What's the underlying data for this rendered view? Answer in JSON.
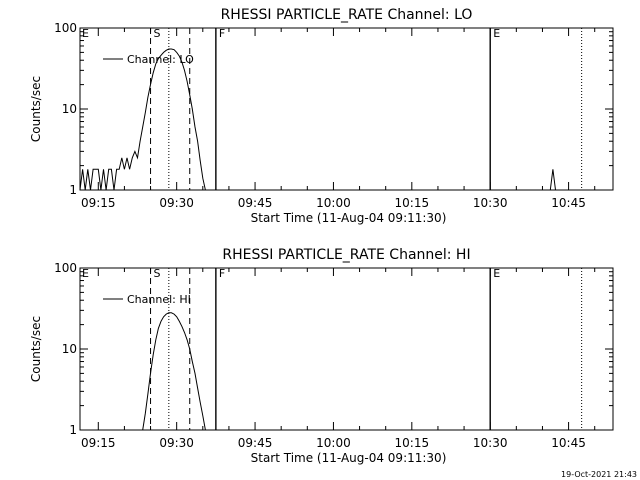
{
  "chart_data": [
    {
      "type": "line",
      "title": "RHESSI PARTICLE_RATE Channel: LO",
      "xlabel": "Start Time (11-Aug-04 09:11:30)",
      "ylabel": "Counts/sec",
      "yscale": "log",
      "xlim": [
        "09:11:30",
        "10:53:30"
      ],
      "ylim": [
        1,
        100
      ],
      "x_ticks": [
        "09:15",
        "09:30",
        "09:45",
        "10:00",
        "10:15",
        "10:30",
        "10:45"
      ],
      "y_ticks": [
        "1",
        "10",
        "100"
      ],
      "legend": {
        "placement": "top-left",
        "label": "Channel: LO"
      },
      "markers": [
        {
          "label": "E",
          "time": "09:11:30",
          "style": "solid"
        },
        {
          "label": "S",
          "time": "09:25:00",
          "style": "dashed"
        },
        {
          "label": "",
          "time": "09:28:30",
          "style": "dotted"
        },
        {
          "label": "",
          "time": "09:32:30",
          "style": "dashed"
        },
        {
          "label": "F",
          "time": "09:37:30",
          "style": "solid"
        },
        {
          "label": "E",
          "time": "10:30:00",
          "style": "solid"
        },
        {
          "label": "",
          "time": "10:47:30",
          "style": "dotted"
        }
      ],
      "series": [
        {
          "name": "Channel: LO",
          "x": [
            "09:11:30",
            "09:12:00",
            "09:12:30",
            "09:13:00",
            "09:13:30",
            "09:14:00",
            "09:14:30",
            "09:15:00",
            "09:15:30",
            "09:16:00",
            "09:16:30",
            "09:17:00",
            "09:17:30",
            "09:18:00",
            "09:18:30",
            "09:19:00",
            "09:19:30",
            "09:20:00",
            "09:20:30",
            "09:21:00",
            "09:21:30",
            "09:22:00",
            "09:22:30",
            "09:23:00",
            "09:23:30",
            "09:24:00",
            "09:24:30",
            "09:25:00",
            "09:25:30",
            "09:26:00",
            "09:26:30",
            "09:27:00",
            "09:27:30",
            "09:28:00",
            "09:28:30",
            "09:29:00",
            "09:29:30",
            "09:30:00",
            "09:30:30",
            "09:31:00",
            "09:31:30",
            "09:32:00",
            "09:32:30",
            "09:33:00",
            "09:33:30",
            "09:34:00",
            "09:34:30",
            "09:35:00",
            "09:35:30",
            "10:41:30",
            "10:42:00",
            "10:42:30"
          ],
          "y": [
            1,
            1.8,
            1,
            1.8,
            1,
            1.8,
            1.8,
            1.8,
            1,
            1.8,
            1,
            1.8,
            1.8,
            1,
            1.8,
            1.8,
            2.5,
            1.8,
            2.5,
            1.8,
            2.5,
            3,
            2.5,
            4,
            6,
            9,
            14,
            20,
            28,
            36,
            42,
            46,
            50,
            53,
            55,
            55,
            54,
            50,
            45,
            38,
            30,
            22,
            15,
            10,
            6,
            4,
            2.3,
            1.4,
            1,
            1,
            1.8,
            1
          ]
        }
      ]
    },
    {
      "type": "line",
      "title": "RHESSI PARTICLE_RATE Channel: HI",
      "xlabel": "Start Time (11-Aug-04 09:11:30)",
      "ylabel": "Counts/sec",
      "yscale": "log",
      "xlim": [
        "09:11:30",
        "10:53:30"
      ],
      "ylim": [
        1,
        100
      ],
      "x_ticks": [
        "09:15",
        "09:30",
        "09:45",
        "10:00",
        "10:15",
        "10:30",
        "10:45"
      ],
      "y_ticks": [
        "1",
        "10",
        "100"
      ],
      "legend": {
        "placement": "top-left",
        "label": "Channel: HI"
      },
      "markers": [
        {
          "label": "E",
          "time": "09:11:30",
          "style": "solid"
        },
        {
          "label": "S",
          "time": "09:25:00",
          "style": "dashed"
        },
        {
          "label": "",
          "time": "09:28:30",
          "style": "dotted"
        },
        {
          "label": "",
          "time": "09:32:30",
          "style": "dashed"
        },
        {
          "label": "F",
          "time": "09:37:30",
          "style": "solid"
        },
        {
          "label": "E",
          "time": "10:30:00",
          "style": "solid"
        },
        {
          "label": "",
          "time": "10:47:30",
          "style": "dotted"
        }
      ],
      "series": [
        {
          "name": "Channel: HI",
          "x": [
            "09:23:30",
            "09:24:00",
            "09:24:30",
            "09:25:00",
            "09:25:30",
            "09:26:00",
            "09:26:30",
            "09:27:00",
            "09:27:30",
            "09:28:00",
            "09:28:30",
            "09:29:00",
            "09:29:30",
            "09:30:00",
            "09:30:30",
            "09:31:00",
            "09:31:30",
            "09:32:00",
            "09:32:30",
            "09:33:00",
            "09:33:30",
            "09:34:00",
            "09:34:30",
            "09:35:00",
            "09:35:30"
          ],
          "y": [
            1,
            1.6,
            2.8,
            5,
            8.5,
            13,
            18,
            22,
            25,
            27,
            28,
            28,
            27,
            25,
            22,
            19,
            16,
            13,
            10,
            7,
            5,
            3.3,
            2.2,
            1.5,
            1
          ]
        }
      ]
    }
  ],
  "footer": {
    "timestamp": "19-Oct-2021 21:43"
  }
}
